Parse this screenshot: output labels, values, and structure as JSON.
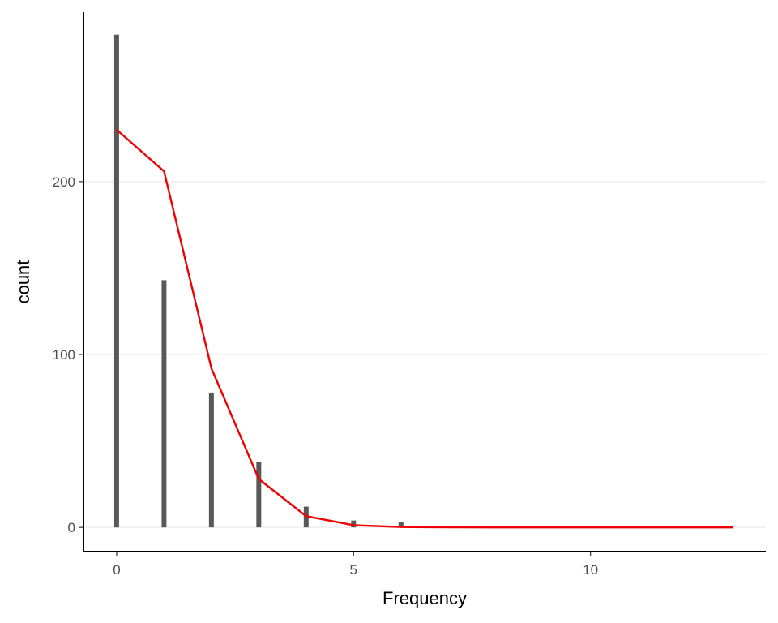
{
  "chart_data": {
    "type": "bar",
    "xlabel": "Frequency",
    "ylabel": "count",
    "xlim": [
      -0.7,
      13.7
    ],
    "ylim": [
      -14,
      298
    ],
    "x_ticks": [
      0,
      5,
      10
    ],
    "y_ticks": [
      0,
      100,
      200
    ],
    "grid": "horizontal-major",
    "colors": {
      "bars": "#595959",
      "line": "#ee0000",
      "grid": "#ebebeb",
      "axis": "#000000"
    },
    "series": [
      {
        "type": "bar",
        "x": [
          0,
          1,
          2,
          3,
          4,
          5,
          6,
          7
        ],
        "values": [
          285,
          143,
          78,
          38,
          12,
          4,
          3,
          1
        ]
      },
      {
        "type": "line",
        "x": [
          0,
          1,
          2,
          3,
          4,
          5,
          6,
          7,
          8,
          9,
          10,
          11,
          12,
          13
        ],
        "values": [
          230,
          206,
          92,
          28,
          6.5,
          1.3,
          0.2,
          0.03,
          0,
          0,
          0,
          0,
          0,
          0
        ]
      }
    ]
  }
}
